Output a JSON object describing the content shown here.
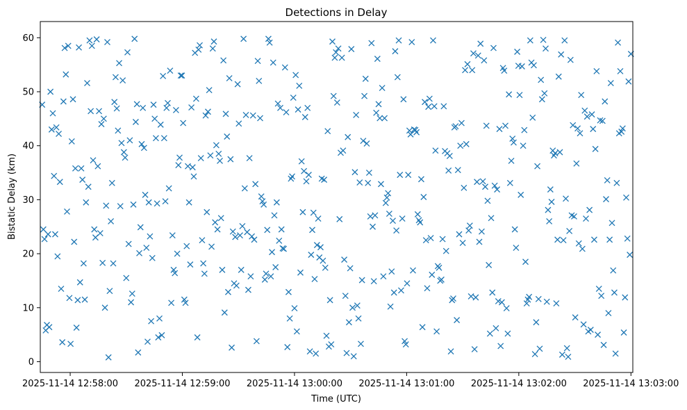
{
  "chart_data": {
    "type": "scatter",
    "title": "Detections in Delay",
    "xlabel": "Time (UTC)",
    "ylabel": "Bistatic Delay (km)",
    "marker": "x",
    "color": "#1f77b4",
    "grid": false,
    "legend": false,
    "x_start": "2025-11-14 12:57:45",
    "x_end": "2025-11-14 13:03:00",
    "xlim": [
      "2025-11-14 12:57:44",
      "2025-11-14 13:03:01"
    ],
    "ylim": [
      -2,
      63
    ],
    "xticks": [
      "2025-11-14 12:58:00",
      "2025-11-14 12:59:00",
      "2025-11-14 13:00:00",
      "2025-11-14 13:01:00",
      "2025-11-14 13:02:00",
      "2025-11-14 13:03:00"
    ],
    "yticks": [
      0,
      10,
      20,
      30,
      40,
      50,
      60
    ],
    "y": [
      47.6,
      24.5,
      22.7,
      5.8,
      6.8,
      23.6,
      6.4,
      50.0,
      43.0,
      46.0,
      34.4,
      23.6,
      43.4,
      19.5,
      42.2,
      33.3,
      13.5,
      3.6,
      48.2,
      58.1,
      53.2,
      27.8,
      58.5,
      11.8,
      3.3,
      40.8,
      48.6,
      22.2,
      35.8,
      6.3,
      11.4,
      58.2,
      14.7,
      35.8,
      33.7,
      18.2,
      11.5,
      29.5,
      51.6,
      32.4,
      59.5,
      46.4,
      58.5,
      37.3,
      24.5,
      23.0,
      59.7,
      36.2,
      46.4,
      23.8,
      44.0,
      18.3,
      45.0,
      10.0,
      28.9,
      59.2,
      0.8,
      13.1,
      26.0,
      33.1,
      18.2,
      48.1,
      52.7,
      46.9,
      42.8,
      55.3,
      28.8,
      40.5,
      52.1,
      38.8,
      37.8,
      15.5,
      57.3,
      21.8,
      41.0,
      11.0,
      12.6,
      29.1,
      59.8,
      44.4,
      47.7,
      1.7,
      20.1,
      24.9,
      40.3,
      47.0,
      39.6,
      30.9,
      21.1,
      3.7,
      29.5,
      23.2,
      7.5,
      19.2,
      47.6,
      45.0,
      41.4,
      29.3,
      4.5,
      8.0,
      43.9,
      4.9,
      52.9,
      41.4,
      29.7,
      47.0,
      47.9,
      32.1,
      53.9,
      10.9,
      23.4,
      17.0,
      16.4,
      46.6,
      20.0,
      36.4,
      37.8,
      53.0,
      53.0,
      44.2,
      11.5,
      10.9,
      21.4,
      36.2,
      29.5,
      18.0,
      47.1,
      36.0,
      34.3,
      57.2,
      48.7,
      4.5,
      57.8,
      58.6,
      37.7,
      22.5,
      18.2,
      16.3,
      45.6,
      27.7,
      46.3,
      50.3,
      38.2,
      21.3,
      58.0,
      59.3,
      25.8,
      40.1,
      24.5,
      38.5,
      37.2,
      26.6,
      17.0,
      55.8,
      9.1,
      45.9,
      41.7,
      12.9,
      52.5,
      37.5,
      2.6,
      24.1,
      14.5,
      23.1,
      14.1,
      51.4,
      44.1,
      23.4,
      17.0,
      25.1,
      59.8,
      32.1,
      45.7,
      24.0,
      13.3,
      37.7,
      15.8,
      23.2,
      45.6,
      22.6,
      32.9,
      3.8,
      55.7,
      52.0,
      45.1,
      30.6,
      29.7,
      29.1,
      15.2,
      16.3,
      24.4,
      59.8,
      59.1,
      15.8,
      20.3,
      55.4,
      27.1,
      17.5,
      29.5,
      47.8,
      22.4,
      47.0,
      24.5,
      21.0,
      20.9,
      54.5,
      46.2,
      2.7,
      12.9,
      8.0,
      33.9,
      34.3,
      48.9,
      9.9,
      53.1,
      5.6,
      46.7,
      51.1,
      16.5,
      37.1,
      27.7,
      35.3,
      45.3,
      33.4,
      47.0,
      34.6,
      1.9,
      19.8,
      24.4,
      27.6,
      15.3,
      1.5,
      21.6,
      26.5,
      19.3,
      21.2,
      33.9,
      18.7,
      33.7,
      17.4,
      4.8,
      42.7,
      2.8,
      11.4,
      3.2,
      59.3,
      49.2,
      56.3,
      57.3,
      48.0,
      58.0,
      26.4,
      38.7,
      56.3,
      39.1,
      18.9,
      12.2,
      1.6,
      41.6,
      7.3,
      17.3,
      57.9,
      10.0,
      1.0,
      35.1,
      45.7,
      10.4,
      8.0,
      33.2,
      3.3,
      15.1,
      40.9,
      49.2,
      52.4,
      40.4,
      33.1,
      35.0,
      26.9,
      59.0,
      25.0,
      14.9,
      27.1,
      46.1,
      56.1,
      47.7,
      45.1,
      32.9,
      50.7,
      15.8,
      45.1,
      29.4,
      30.4,
      31.2,
      27.4,
      10.2,
      16.7,
      26.1,
      12.8,
      57.5,
      24.3,
      52.7,
      59.5,
      34.6,
      13.2,
      26.5,
      48.6,
      3.8,
      3.2,
      14.5,
      34.6,
      42.8,
      42.1,
      59.2,
      16.9,
      43.0,
      42.9,
      42.5,
      27.3,
      26.2,
      25.8,
      33.8,
      6.4,
      30.5,
      48.1,
      22.5,
      13.6,
      47.2,
      48.7,
      22.9,
      16.1,
      59.5,
      47.3,
      39.1,
      5.6,
      17.7,
      17.4,
      15.0,
      15.2,
      22.7,
      47.3,
      39.0,
      20.5,
      38.6,
      35.4,
      38.1,
      1.9,
      11.4,
      11.7,
      43.4,
      43.6,
      7.7,
      35.5,
      23.6,
      40.0,
      44.2,
      22.0,
      32.2,
      54.0,
      40.3,
      55.1,
      24.3,
      25.2,
      12.1,
      54.0,
      57.1,
      2.3,
      11.9,
      33.3,
      56.7,
      22.2,
      58.9,
      24.1,
      33.4,
      55.8,
      32.4,
      43.7,
      29.8,
      17.9,
      5.2,
      26.6,
      12.8,
      58.1,
      32.6,
      6.2,
      31.9,
      11.2,
      43.1,
      2.9,
      11.0,
      54.4,
      53.9,
      43.7,
      9.9,
      5.2,
      49.5,
      33.1,
      37.2,
      41.3,
      40.6,
      24.5,
      21.1,
      57.4,
      54.8,
      49.4,
      30.9,
      54.7,
      40.0,
      42.9,
      18.5,
      10.8,
      11.5,
      12.0,
      59.5,
      55.4,
      45.2,
      54.9,
      1.4,
      7.3,
      36.2,
      11.6,
      2.4,
      52.2,
      48.6,
      59.6,
      49.7,
      58.0,
      11.1,
      28.1,
      26.0,
      31.9,
      29.6,
      39.1,
      38.2,
      38.6,
      10.8,
      22.6,
      52.8,
      38.8,
      56.9,
      1.3,
      22.5,
      59.5,
      30.2,
      2.5,
      0.9,
      24.2,
      55.9,
      27.1,
      43.8,
      26.9,
      8.2,
      36.7,
      43.2,
      21.9,
      42.3,
      49.4,
      20.9,
      6.9,
      46.5,
      26.5,
      45.4,
      5.6,
      28.1,
      5.9,
      45.8,
      43.1,
      22.6,
      39.4,
      53.8,
      5.0,
      13.5,
      44.7,
      12.2,
      44.6,
      3.1,
      48.2,
      30.1,
      33.6,
      9.0,
      22.6,
      51.6,
      25.7,
      16.9,
      12.8,
      1.5,
      33.1,
      59.1,
      42.3,
      53.8,
      42.6,
      43.2,
      5.4,
      11.9,
      30.4,
      22.8,
      51.9,
      19.8,
      57.0
    ]
  }
}
